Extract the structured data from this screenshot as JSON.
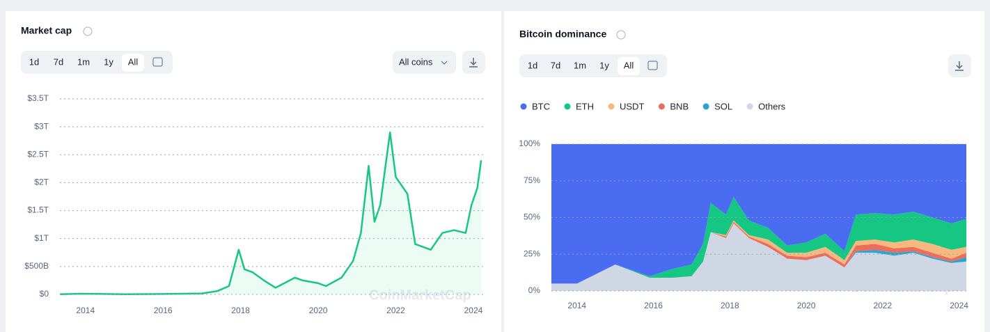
{
  "watermark": "CoinMarketCap",
  "panels": [
    {
      "range_buttons": [
        "1d",
        "7d",
        "1m",
        "1y",
        "All"
      ],
      "coin_filter": "All coins"
    },
    {
      "range_buttons": [
        "1d",
        "7d",
        "1m",
        "1y",
        "All"
      ]
    }
  ],
  "chart_data": [
    {
      "type": "line",
      "title": "Market cap",
      "x": [
        2013.34,
        2013.9,
        2014.5,
        2015.0,
        2016.0,
        2016.5,
        2017.0,
        2017.4,
        2017.7,
        2017.95,
        2018.1,
        2018.3,
        2018.6,
        2018.9,
        2019.4,
        2019.6,
        2020.0,
        2020.2,
        2020.6,
        2020.9,
        2021.1,
        2021.3,
        2021.45,
        2021.6,
        2021.85,
        2022.0,
        2022.3,
        2022.5,
        2022.9,
        2023.2,
        2023.5,
        2023.8,
        2023.95,
        2024.1,
        2024.2
      ],
      "series": [
        {
          "color": "#16c784",
          "values": [
            2000000000.0,
            12000000000.0,
            8000000000.0,
            4000000000.0,
            7000000000.0,
            12000000000.0,
            18000000000.0,
            60000000000.0,
            150000000000.0,
            800000000000.0,
            450000000000.0,
            400000000000.0,
            250000000000.0,
            120000000000.0,
            300000000000.0,
            250000000000.0,
            200000000000.0,
            150000000000.0,
            300000000000.0,
            600000000000.0,
            1100000000000.0,
            2300000000000.0,
            1300000000000.0,
            1600000000000.0,
            2900000000000.0,
            2100000000000.0,
            1800000000000.0,
            900000000000.0,
            800000000000.0,
            1100000000000.0,
            1150000000000.0,
            1100000000000.0,
            1600000000000.0,
            1900000000000.0,
            2400000000000.0
          ]
        }
      ],
      "xlim": [
        2013.34,
        2024.27
      ],
      "xticks": [
        2014,
        2016,
        2018,
        2020,
        2022,
        2024
      ],
      "ylim": [
        0,
        3500000000000.0
      ],
      "yticks": [
        {
          "value": 0,
          "label": "$0"
        },
        {
          "value": 500000000000.0,
          "label": "$500B"
        },
        {
          "value": 1000000000000.0,
          "label": "$1T"
        },
        {
          "value": 1500000000000.0,
          "label": "$1.5T"
        },
        {
          "value": 2000000000000.0,
          "label": "$2T"
        },
        {
          "value": 2500000000000.0,
          "label": "$2.5T"
        },
        {
          "value": 3000000000000.0,
          "label": "$3T"
        },
        {
          "value": 3500000000000.0,
          "label": "$3.5T"
        }
      ],
      "grid": true
    },
    {
      "type": "stacked_area",
      "title": "Bitcoin dominance",
      "x": [
        2013.33,
        2014,
        2015,
        2015.9,
        2016.5,
        2017.0,
        2017.3,
        2017.5,
        2017.9,
        2018.1,
        2018.5,
        2019.0,
        2019.5,
        2020.0,
        2020.5,
        2021.0,
        2021.3,
        2021.8,
        2022.3,
        2022.8,
        2023.3,
        2023.8,
        2024.19
      ],
      "series": [
        {
          "name": "BTC",
          "color": "#4a6cf0",
          "values": [
            95,
            95,
            82,
            90,
            85,
            82,
            68,
            40,
            48,
            36,
            52,
            57,
            69,
            67,
            61,
            73,
            48,
            47,
            48,
            46,
            50,
            54,
            51
          ]
        },
        {
          "name": "ETH",
          "color": "#16c784",
          "values": [
            0,
            0,
            0,
            1,
            6,
            8,
            12,
            20,
            14,
            16,
            10,
            8,
            5,
            7,
            9,
            6,
            18,
            18,
            19,
            19,
            18,
            18,
            19
          ]
        },
        {
          "name": "USDT",
          "color": "#f6b87e",
          "values": [
            0,
            0,
            0,
            0,
            0,
            0,
            0,
            0,
            1,
            1,
            1,
            3,
            2,
            3,
            4,
            3,
            3,
            3,
            4,
            5,
            6,
            6,
            4
          ]
        },
        {
          "name": "BNB",
          "color": "#ea6e5b",
          "values": [
            0,
            0,
            0,
            0,
            0,
            0,
            0,
            0,
            1,
            1,
            1,
            2,
            2,
            2,
            2,
            2,
            4,
            4,
            3,
            3,
            3,
            2,
            3
          ]
        },
        {
          "name": "SOL",
          "color": "#2ea3d0",
          "values": [
            0,
            0,
            0,
            0,
            0,
            0,
            0,
            0,
            0,
            0,
            0,
            0,
            0,
            0,
            0,
            0,
            1,
            2,
            2,
            1,
            1,
            1,
            3
          ]
        },
        {
          "name": "Others",
          "color": "#cfd6e4",
          "values": [
            5,
            5,
            18,
            9,
            9,
            10,
            20,
            40,
            36,
            46,
            36,
            30,
            22,
            21,
            24,
            16,
            26,
            26,
            24,
            26,
            22,
            19,
            20
          ]
        }
      ],
      "xlim": [
        2013.33,
        2024.19
      ],
      "xticks": [
        2014,
        2016,
        2018,
        2020,
        2022,
        2024
      ],
      "ylim": [
        0,
        100
      ],
      "yticks": [
        {
          "value": 0,
          "label": "0%"
        },
        {
          "value": 25,
          "label": "25%"
        },
        {
          "value": 50,
          "label": "50%"
        },
        {
          "value": 75,
          "label": "75%"
        },
        {
          "value": 100,
          "label": "100%"
        }
      ],
      "grid": true,
      "legend": "top"
    }
  ]
}
